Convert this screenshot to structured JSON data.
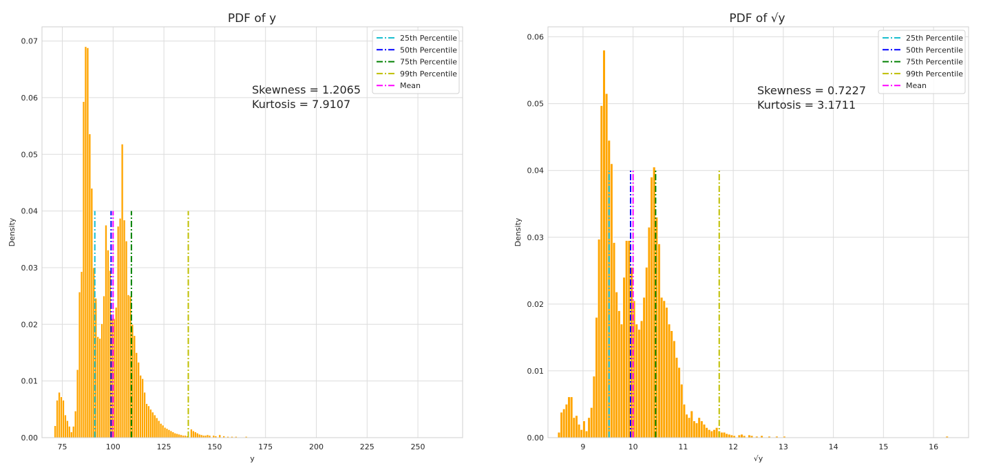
{
  "chart_data": [
    {
      "type": "bar",
      "title": "PDF of y",
      "xlabel": "y",
      "ylabel": "Density",
      "xlim": [
        65,
        272
      ],
      "ylim": [
        0,
        0.0725
      ],
      "xticks": [
        75,
        100,
        125,
        150,
        175,
        200,
        225,
        250
      ],
      "yticks": [
        0.0,
        0.01,
        0.02,
        0.03,
        0.04,
        0.05,
        0.06,
        0.07
      ],
      "ytick_labels": [
        "0.00",
        "0.01",
        "0.02",
        "0.03",
        "0.04",
        "0.05",
        "0.06",
        "0.07"
      ],
      "grid": true,
      "bar_color": "#FFA500",
      "bin_width": 1.0,
      "bins": [
        [
          71.5,
          0.0021
        ],
        [
          72.5,
          0.0066
        ],
        [
          73.5,
          0.008
        ],
        [
          74.5,
          0.0072
        ],
        [
          75.5,
          0.0066
        ],
        [
          76.5,
          0.004
        ],
        [
          77.5,
          0.003
        ],
        [
          78.5,
          0.002
        ],
        [
          79.5,
          0.001
        ],
        [
          80.5,
          0.002
        ],
        [
          81.5,
          0.0047
        ],
        [
          82.5,
          0.012
        ],
        [
          83.5,
          0.0257
        ],
        [
          84.5,
          0.0293
        ],
        [
          85.5,
          0.0593
        ],
        [
          86.5,
          0.069
        ],
        [
          87.5,
          0.0688
        ],
        [
          88.5,
          0.0536
        ],
        [
          89.5,
          0.044
        ],
        [
          90.5,
          0.03
        ],
        [
          91.5,
          0.0246
        ],
        [
          92.5,
          0.0178
        ],
        [
          93.5,
          0.0175
        ],
        [
          94.5,
          0.0201
        ],
        [
          95.5,
          0.025
        ],
        [
          96.5,
          0.0375
        ],
        [
          97.5,
          0.0331
        ],
        [
          98.5,
          0.0295
        ],
        [
          99.5,
          0.021
        ],
        [
          100.5,
          0.021
        ],
        [
          101.5,
          0.023
        ],
        [
          102.5,
          0.0373
        ],
        [
          103.5,
          0.0387
        ],
        [
          104.5,
          0.0518
        ],
        [
          105.5,
          0.0384
        ],
        [
          106.5,
          0.0347
        ],
        [
          107.5,
          0.0252
        ],
        [
          108.5,
          0.025
        ],
        [
          109.5,
          0.02
        ],
        [
          110.5,
          0.018
        ],
        [
          111.5,
          0.015
        ],
        [
          112.5,
          0.0133
        ],
        [
          113.5,
          0.011
        ],
        [
          114.5,
          0.0104
        ],
        [
          115.5,
          0.008
        ],
        [
          116.5,
          0.006
        ],
        [
          117.5,
          0.0056
        ],
        [
          118.5,
          0.005
        ],
        [
          119.5,
          0.0045
        ],
        [
          120.5,
          0.004
        ],
        [
          121.5,
          0.0035
        ],
        [
          122.5,
          0.003
        ],
        [
          123.5,
          0.0025
        ],
        [
          124.5,
          0.0022
        ],
        [
          125.5,
          0.0018
        ],
        [
          126.5,
          0.0016
        ],
        [
          127.5,
          0.0014
        ],
        [
          128.5,
          0.0012
        ],
        [
          129.5,
          0.001
        ],
        [
          130.5,
          0.0008
        ],
        [
          131.5,
          0.0007
        ],
        [
          132.5,
          0.0006
        ],
        [
          133.5,
          0.0005
        ],
        [
          134.5,
          0.0004
        ],
        [
          135.5,
          0.0004
        ],
        [
          136.5,
          0.0003
        ],
        [
          138.5,
          0.0015
        ],
        [
          139.5,
          0.0012
        ],
        [
          140.5,
          0.001
        ],
        [
          141.5,
          0.0008
        ],
        [
          142.5,
          0.0006
        ],
        [
          143.5,
          0.0005
        ],
        [
          144.5,
          0.0004
        ],
        [
          145.5,
          0.0004
        ],
        [
          146.5,
          0.0005
        ],
        [
          147.5,
          0.0004
        ],
        [
          149.5,
          0.0004
        ],
        [
          150.5,
          0.0003
        ],
        [
          152.5,
          0.0005
        ],
        [
          154.5,
          0.0003
        ],
        [
          156.5,
          0.0002
        ],
        [
          158.5,
          0.0002
        ],
        [
          160.5,
          0.0002
        ],
        [
          162.5,
          0.0001
        ],
        [
          165.5,
          0.0002
        ],
        [
          168.5,
          0.0001
        ],
        [
          263.5,
          0.0001
        ]
      ],
      "vlines": [
        {
          "name": "25th Percentile",
          "x": 91,
          "color": "#17becf",
          "ymax": 0.04
        },
        {
          "name": "50th Percentile",
          "x": 99,
          "color": "#0000ff",
          "ymax": 0.04
        },
        {
          "name": "75th Percentile",
          "x": 109,
          "color": "#008000",
          "ymax": 0.04
        },
        {
          "name": "99th Percentile",
          "x": 137,
          "color": "#bfbf00",
          "ymax": 0.04
        },
        {
          "name": "Mean",
          "x": 100,
          "color": "#ff00ff",
          "ymax": 0.04
        }
      ],
      "annotations": [
        "Skewness = 1.2065",
        "Kurtosis = 7.9107"
      ],
      "legend_position": "top-right"
    },
    {
      "type": "bar",
      "title": "PDF of √y",
      "xlabel": "√y",
      "ylabel": "Density",
      "xlim": [
        8.3,
        16.7
      ],
      "ylim": [
        0,
        0.0615
      ],
      "xticks": [
        9,
        10,
        11,
        12,
        13,
        14,
        15,
        16
      ],
      "yticks": [
        0.0,
        0.01,
        0.02,
        0.03,
        0.04,
        0.05,
        0.06
      ],
      "ytick_labels": [
        "0.00",
        "0.01",
        "0.02",
        "0.03",
        "0.04",
        "0.05",
        "0.06"
      ],
      "grid": true,
      "bar_color": "#FFA500",
      "bin_width": 0.05,
      "bins": [
        [
          8.52,
          0.0008
        ],
        [
          8.57,
          0.0038
        ],
        [
          8.62,
          0.0043
        ],
        [
          8.67,
          0.005
        ],
        [
          8.72,
          0.0061
        ],
        [
          8.77,
          0.0061
        ],
        [
          8.82,
          0.003
        ],
        [
          8.87,
          0.0033
        ],
        [
          8.92,
          0.002
        ],
        [
          8.97,
          0.0012
        ],
        [
          9.02,
          0.0025
        ],
        [
          9.07,
          0.001
        ],
        [
          9.12,
          0.003
        ],
        [
          9.17,
          0.0045
        ],
        [
          9.22,
          0.0092
        ],
        [
          9.27,
          0.018
        ],
        [
          9.32,
          0.0297
        ],
        [
          9.37,
          0.0497
        ],
        [
          9.42,
          0.058
        ],
        [
          9.47,
          0.0515
        ],
        [
          9.52,
          0.0445
        ],
        [
          9.57,
          0.041
        ],
        [
          9.62,
          0.0292
        ],
        [
          9.67,
          0.0218
        ],
        [
          9.72,
          0.019
        ],
        [
          9.77,
          0.017
        ],
        [
          9.82,
          0.024
        ],
        [
          9.87,
          0.0295
        ],
        [
          9.92,
          0.0295
        ],
        [
          9.97,
          0.0255
        ],
        [
          10.02,
          0.0205
        ],
        [
          10.07,
          0.017
        ],
        [
          10.12,
          0.0162
        ],
        [
          10.17,
          0.0175
        ],
        [
          10.22,
          0.021
        ],
        [
          10.27,
          0.0255
        ],
        [
          10.32,
          0.0315
        ],
        [
          10.37,
          0.039
        ],
        [
          10.42,
          0.0405
        ],
        [
          10.47,
          0.033
        ],
        [
          10.52,
          0.029
        ],
        [
          10.57,
          0.021
        ],
        [
          10.62,
          0.0205
        ],
        [
          10.67,
          0.0195
        ],
        [
          10.72,
          0.017
        ],
        [
          10.77,
          0.016
        ],
        [
          10.82,
          0.0145
        ],
        [
          10.87,
          0.012
        ],
        [
          10.92,
          0.0105
        ],
        [
          10.97,
          0.008
        ],
        [
          11.02,
          0.005
        ],
        [
          11.07,
          0.0035
        ],
        [
          11.12,
          0.003
        ],
        [
          11.17,
          0.004
        ],
        [
          11.22,
          0.0025
        ],
        [
          11.27,
          0.0022
        ],
        [
          11.32,
          0.003
        ],
        [
          11.37,
          0.0025
        ],
        [
          11.42,
          0.002
        ],
        [
          11.47,
          0.0015
        ],
        [
          11.52,
          0.0012
        ],
        [
          11.57,
          0.001
        ],
        [
          11.62,
          0.0012
        ],
        [
          11.67,
          0.0015
        ],
        [
          11.72,
          0.001
        ],
        [
          11.77,
          0.0008
        ],
        [
          11.82,
          0.0008
        ],
        [
          11.87,
          0.0006
        ],
        [
          11.92,
          0.0005
        ],
        [
          11.97,
          0.0004
        ],
        [
          12.02,
          0.0003
        ],
        [
          12.12,
          0.0004
        ],
        [
          12.17,
          0.0005
        ],
        [
          12.22,
          0.0003
        ],
        [
          12.32,
          0.0004
        ],
        [
          12.37,
          0.0003
        ],
        [
          12.47,
          0.0002
        ],
        [
          12.57,
          0.0003
        ],
        [
          12.72,
          0.0002
        ],
        [
          12.87,
          0.0002
        ],
        [
          13.02,
          0.0002
        ],
        [
          16.27,
          0.0002
        ]
      ],
      "vlines": [
        {
          "name": "25th Percentile",
          "x": 9.52,
          "color": "#17becf",
          "ymax": 0.04
        },
        {
          "name": "50th Percentile",
          "x": 9.95,
          "color": "#0000ff",
          "ymax": 0.04
        },
        {
          "name": "75th Percentile",
          "x": 10.45,
          "color": "#008000",
          "ymax": 0.04
        },
        {
          "name": "99th Percentile",
          "x": 11.72,
          "color": "#bfbf00",
          "ymax": 0.04
        },
        {
          "name": "Mean",
          "x": 10.0,
          "color": "#ff00ff",
          "ymax": 0.04
        }
      ],
      "annotations": [
        "Skewness = 0.7227",
        "Kurtosis = 3.1711"
      ],
      "legend_position": "top-right"
    }
  ]
}
